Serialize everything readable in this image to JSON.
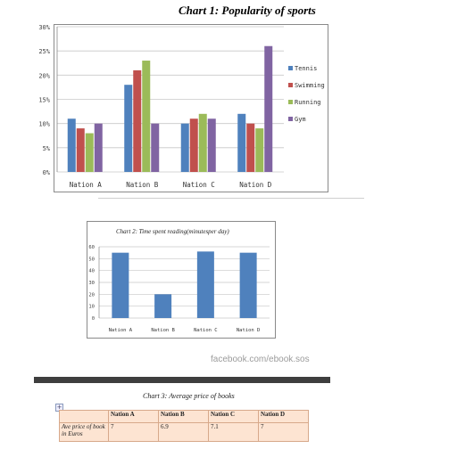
{
  "chart_data": [
    {
      "type": "bar",
      "title": "Chart 1: Popularity of sports",
      "categories": [
        "Nation A",
        "Nation B",
        "Nation C",
        "Nation D"
      ],
      "series": [
        {
          "name": "Tennis",
          "color": "#4f81bd",
          "values": [
            11,
            18,
            10,
            12
          ]
        },
        {
          "name": "Swimming",
          "color": "#c0504d",
          "values": [
            9,
            21,
            11,
            10
          ]
        },
        {
          "name": "Running",
          "color": "#9bbb59",
          "values": [
            8,
            23,
            12,
            9
          ]
        },
        {
          "name": "Gym",
          "color": "#8064a2",
          "values": [
            10,
            10,
            11,
            26
          ]
        }
      ],
      "yticks": [
        "0%",
        "5%",
        "10%",
        "15%",
        "20%",
        "25%",
        "30%"
      ],
      "ylim": [
        0,
        30
      ],
      "grid": true,
      "legend": "right"
    },
    {
      "type": "bar",
      "title": "Chart 2: Time spent reading(minutesper day)",
      "categories": [
        "Nation A",
        "Nation B",
        "Nation C",
        "Nation D"
      ],
      "values": [
        55,
        20,
        56,
        55
      ],
      "color": "#4f81bd",
      "yticks": [
        "0",
        "10",
        "20",
        "30",
        "40",
        "50",
        "60"
      ],
      "ylim": [
        0,
        60
      ],
      "grid": true
    },
    {
      "type": "table",
      "title": "Chart 3: Average price of books",
      "columns": [
        "",
        "Nation A",
        "Nation B",
        "Nation C",
        "Nation D"
      ],
      "rows": [
        {
          "label": "Ave price of book in Euros",
          "values": [
            "7",
            "6.9",
            "7.1",
            "7"
          ]
        }
      ]
    }
  ],
  "watermark": "facebook.com/ebook.sos",
  "table_icon": "plus-icon",
  "table_icon_glyph": "+"
}
